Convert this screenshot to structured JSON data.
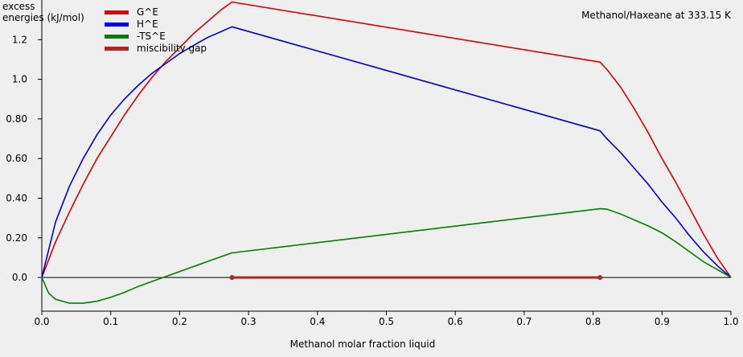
{
  "chart_data": {
    "type": "line",
    "title": "Methanol/Haxeane at 333.15 K",
    "ylabel_lines": [
      "excess",
      "energies (kJ/mol)"
    ],
    "xlabel": "Methanol molar fraction liquid",
    "xlim": [
      0,
      1
    ],
    "ylim": [
      -0.17,
      1.4
    ],
    "x_ticks": [
      "0.0",
      "0.1",
      "0.2",
      "0.3",
      "0.4",
      "0.5",
      "0.6",
      "0.7",
      "0.8",
      "0.9",
      "1.0"
    ],
    "y_ticks": [
      "0.0",
      "0.20",
      "0.40",
      "0.60",
      "0.80",
      "1.0",
      "1.2"
    ],
    "legend_position": "top-left",
    "series": [
      {
        "name": "G^E",
        "color": "#e00000",
        "x": [
          0,
          0.02,
          0.04,
          0.06,
          0.08,
          0.1,
          0.12,
          0.14,
          0.16,
          0.18,
          0.2,
          0.22,
          0.24,
          0.26,
          0.276,
          0.81,
          0.82,
          0.84,
          0.86,
          0.88,
          0.9,
          0.92,
          0.94,
          0.96,
          0.98,
          1.0
        ],
        "y": [
          0,
          0.18,
          0.33,
          0.47,
          0.6,
          0.71,
          0.82,
          0.92,
          1.01,
          1.09,
          1.16,
          1.23,
          1.29,
          1.35,
          1.39,
          1.087,
          1.05,
          0.96,
          0.85,
          0.73,
          0.6,
          0.48,
          0.35,
          0.22,
          0.1,
          0
        ]
      },
      {
        "name": "H^E",
        "color": "#0000dd",
        "x": [
          0,
          0.02,
          0.04,
          0.06,
          0.08,
          0.1,
          0.12,
          0.14,
          0.16,
          0.18,
          0.2,
          0.22,
          0.24,
          0.26,
          0.276,
          0.81,
          0.82,
          0.84,
          0.86,
          0.88,
          0.9,
          0.92,
          0.94,
          0.96,
          0.98,
          1.0
        ],
        "y": [
          0,
          0.28,
          0.46,
          0.6,
          0.72,
          0.82,
          0.9,
          0.97,
          1.03,
          1.08,
          1.13,
          1.17,
          1.21,
          1.24,
          1.265,
          0.74,
          0.7,
          0.63,
          0.55,
          0.47,
          0.38,
          0.3,
          0.21,
          0.13,
          0.06,
          0
        ]
      },
      {
        "name": "-TS^E",
        "color": "#008000",
        "x": [
          0,
          0.01,
          0.02,
          0.04,
          0.06,
          0.08,
          0.1,
          0.12,
          0.14,
          0.16,
          0.18,
          0.2,
          0.22,
          0.24,
          0.26,
          0.276,
          0.81,
          0.82,
          0.84,
          0.86,
          0.88,
          0.9,
          0.92,
          0.94,
          0.96,
          0.98,
          1.0
        ],
        "y": [
          0,
          -0.08,
          -0.11,
          -0.13,
          -0.13,
          -0.12,
          -0.1,
          -0.075,
          -0.045,
          -0.02,
          0.005,
          0.03,
          0.055,
          0.08,
          0.105,
          0.124,
          0.347,
          0.345,
          0.32,
          0.29,
          0.26,
          0.225,
          0.18,
          0.13,
          0.08,
          0.04,
          0
        ]
      },
      {
        "name": "miscibility gap",
        "color": "#a52a2a",
        "x": [
          0.276,
          0.81
        ],
        "y": [
          0,
          0
        ]
      }
    ]
  }
}
